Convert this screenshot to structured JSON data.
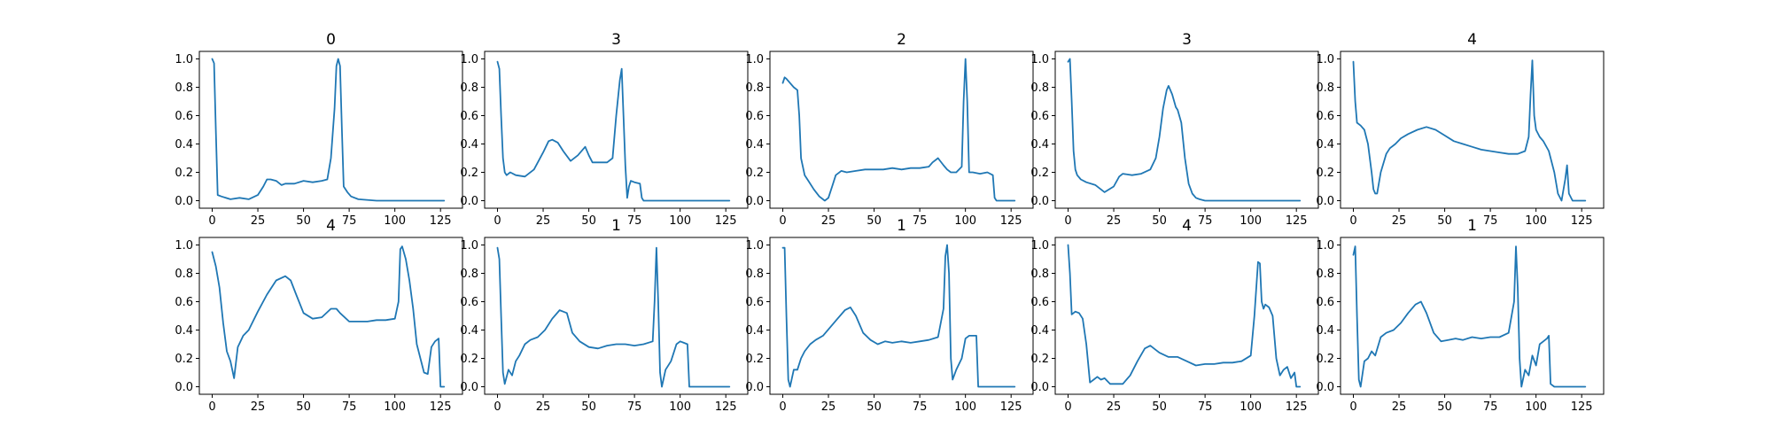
{
  "figure": {
    "line_color": "#1f77b4",
    "background": "#ffffff"
  },
  "chart_data": [
    {
      "type": "line",
      "title": "0",
      "xlim": [
        0,
        130
      ],
      "ylim": [
        0,
        1
      ],
      "x_ticks": [
        "0",
        "25",
        "50",
        "75",
        "100",
        "125"
      ],
      "y_ticks": [
        "0.0",
        "0.2",
        "0.4",
        "0.6",
        "0.8",
        "1.0"
      ],
      "x": [
        0,
        1,
        2,
        3,
        5,
        10,
        15,
        20,
        25,
        28,
        30,
        32,
        35,
        38,
        40,
        45,
        50,
        55,
        60,
        63,
        65,
        67,
        68,
        69,
        70,
        71,
        72,
        74,
        76,
        80,
        90,
        100,
        110,
        120,
        127
      ],
      "y": [
        1.0,
        0.97,
        0.5,
        0.04,
        0.03,
        0.01,
        0.02,
        0.01,
        0.04,
        0.1,
        0.15,
        0.15,
        0.14,
        0.11,
        0.12,
        0.12,
        0.14,
        0.13,
        0.14,
        0.15,
        0.3,
        0.65,
        0.95,
        1.0,
        0.95,
        0.5,
        0.1,
        0.06,
        0.03,
        0.01,
        0.0,
        0.0,
        0.0,
        0.0,
        0.0
      ]
    },
    {
      "type": "line",
      "title": "3",
      "xlim": [
        0,
        130
      ],
      "ylim": [
        0,
        1
      ],
      "x_ticks": [
        "0",
        "25",
        "50",
        "75",
        "100",
        "125"
      ],
      "y_ticks": [
        "0.0",
        "0.2",
        "0.4",
        "0.6",
        "0.8",
        "1.0"
      ],
      "x": [
        0,
        1,
        2,
        3,
        4,
        5,
        7,
        10,
        15,
        20,
        25,
        28,
        30,
        33,
        36,
        40,
        44,
        48,
        50,
        52,
        55,
        60,
        63,
        65,
        67,
        68,
        69,
        70,
        71,
        72,
        73,
        75,
        78,
        79,
        80,
        82,
        90,
        100,
        110,
        120,
        127
      ],
      "y": [
        0.98,
        0.93,
        0.6,
        0.3,
        0.2,
        0.18,
        0.2,
        0.18,
        0.17,
        0.22,
        0.34,
        0.42,
        0.43,
        0.41,
        0.35,
        0.28,
        0.32,
        0.38,
        0.32,
        0.27,
        0.27,
        0.27,
        0.3,
        0.6,
        0.85,
        0.93,
        0.6,
        0.25,
        0.02,
        0.1,
        0.14,
        0.13,
        0.12,
        0.02,
        0.0,
        0.0,
        0.0,
        0.0,
        0.0,
        0.0,
        0.0
      ]
    },
    {
      "type": "line",
      "title": "2",
      "xlim": [
        0,
        130
      ],
      "ylim": [
        0,
        1
      ],
      "x_ticks": [
        "0",
        "25",
        "50",
        "75",
        "100",
        "125"
      ],
      "y_ticks": [
        "0.0",
        "0.2",
        "0.4",
        "0.6",
        "0.8",
        "1.0"
      ],
      "x": [
        0,
        1,
        2,
        4,
        6,
        8,
        9,
        10,
        12,
        14,
        17,
        20,
        23,
        25,
        27,
        29,
        32,
        35,
        40,
        45,
        50,
        55,
        60,
        65,
        70,
        75,
        80,
        82,
        85,
        88,
        90,
        92,
        95,
        98,
        99,
        100,
        101,
        102,
        104,
        108,
        112,
        115,
        116,
        117,
        120,
        125,
        127
      ],
      "y": [
        0.83,
        0.87,
        0.86,
        0.83,
        0.8,
        0.78,
        0.6,
        0.3,
        0.18,
        0.14,
        0.08,
        0.03,
        0.0,
        0.02,
        0.1,
        0.18,
        0.21,
        0.2,
        0.21,
        0.22,
        0.22,
        0.22,
        0.23,
        0.22,
        0.23,
        0.23,
        0.24,
        0.27,
        0.3,
        0.25,
        0.22,
        0.2,
        0.2,
        0.24,
        0.7,
        1.0,
        0.7,
        0.2,
        0.2,
        0.19,
        0.2,
        0.18,
        0.02,
        0.0,
        0.0,
        0.0,
        0.0
      ]
    },
    {
      "type": "line",
      "title": "3",
      "xlim": [
        0,
        130
      ],
      "ylim": [
        0,
        1
      ],
      "x_ticks": [
        "0",
        "25",
        "50",
        "75",
        "100",
        "125"
      ],
      "y_ticks": [
        "0.0",
        "0.2",
        "0.4",
        "0.6",
        "0.8",
        "1.0"
      ],
      "x": [
        0,
        1,
        2,
        3,
        4,
        5,
        7,
        10,
        15,
        20,
        25,
        28,
        30,
        35,
        40,
        45,
        48,
        50,
        52,
        54,
        55,
        57,
        59,
        60,
        62,
        64,
        66,
        68,
        70,
        72,
        75,
        80,
        90,
        100,
        110,
        120,
        127
      ],
      "y": [
        0.98,
        1.0,
        0.7,
        0.35,
        0.22,
        0.18,
        0.15,
        0.13,
        0.11,
        0.06,
        0.1,
        0.17,
        0.19,
        0.18,
        0.19,
        0.22,
        0.3,
        0.45,
        0.65,
        0.78,
        0.81,
        0.75,
        0.66,
        0.64,
        0.55,
        0.3,
        0.12,
        0.05,
        0.02,
        0.01,
        0.0,
        0.0,
        0.0,
        0.0,
        0.0,
        0.0,
        0.0
      ]
    },
    {
      "type": "line",
      "title": "4",
      "xlim": [
        0,
        130
      ],
      "ylim": [
        0,
        1
      ],
      "x_ticks": [
        "0",
        "25",
        "50",
        "75",
        "100",
        "125"
      ],
      "y_ticks": [
        "0.0",
        "0.2",
        "0.4",
        "0.6",
        "0.8",
        "1.0"
      ],
      "x": [
        0,
        1,
        2,
        4,
        6,
        8,
        10,
        11,
        12,
        13,
        15,
        18,
        20,
        23,
        26,
        30,
        35,
        40,
        45,
        50,
        55,
        60,
        65,
        70,
        75,
        80,
        85,
        90,
        94,
        96,
        97,
        98,
        99,
        100,
        102,
        104,
        107,
        110,
        112,
        114,
        116,
        117,
        118,
        120,
        125,
        127
      ],
      "y": [
        0.98,
        0.7,
        0.55,
        0.53,
        0.5,
        0.4,
        0.2,
        0.08,
        0.05,
        0.05,
        0.2,
        0.33,
        0.37,
        0.4,
        0.44,
        0.47,
        0.5,
        0.52,
        0.5,
        0.46,
        0.42,
        0.4,
        0.38,
        0.36,
        0.35,
        0.34,
        0.33,
        0.33,
        0.35,
        0.45,
        0.75,
        0.99,
        0.6,
        0.5,
        0.45,
        0.42,
        0.35,
        0.2,
        0.05,
        0.0,
        0.15,
        0.25,
        0.05,
        0.0,
        0.0,
        0.0
      ]
    },
    {
      "type": "line",
      "title": "4",
      "xlim": [
        0,
        130
      ],
      "ylim": [
        0,
        1
      ],
      "x_ticks": [
        "0",
        "25",
        "50",
        "75",
        "100",
        "125"
      ],
      "y_ticks": [
        "0.0",
        "0.2",
        "0.4",
        "0.6",
        "0.8",
        "1.0"
      ],
      "x": [
        0,
        2,
        4,
        6,
        8,
        10,
        12,
        14,
        17,
        20,
        25,
        30,
        35,
        40,
        43,
        46,
        50,
        55,
        60,
        65,
        68,
        70,
        75,
        80,
        85,
        90,
        95,
        100,
        102,
        103,
        104,
        106,
        108,
        110,
        112,
        114,
        116,
        118,
        120,
        122,
        124,
        125,
        126,
        127
      ],
      "y": [
        0.95,
        0.85,
        0.7,
        0.45,
        0.25,
        0.18,
        0.06,
        0.28,
        0.36,
        0.4,
        0.53,
        0.65,
        0.75,
        0.78,
        0.75,
        0.65,
        0.52,
        0.48,
        0.49,
        0.55,
        0.55,
        0.52,
        0.46,
        0.46,
        0.46,
        0.47,
        0.47,
        0.48,
        0.6,
        0.97,
        0.99,
        0.9,
        0.75,
        0.55,
        0.3,
        0.2,
        0.1,
        0.09,
        0.28,
        0.32,
        0.34,
        0.0,
        0.0,
        0.0
      ]
    },
    {
      "type": "line",
      "title": "1",
      "xlim": [
        0,
        130
      ],
      "ylim": [
        0,
        1
      ],
      "x_ticks": [
        "0",
        "25",
        "50",
        "75",
        "100",
        "125"
      ],
      "y_ticks": [
        "0.0",
        "0.2",
        "0.4",
        "0.6",
        "0.8",
        "1.0"
      ],
      "x": [
        0,
        1,
        2,
        3,
        4,
        6,
        8,
        10,
        12,
        15,
        18,
        22,
        26,
        30,
        34,
        38,
        41,
        45,
        50,
        55,
        60,
        65,
        70,
        75,
        80,
        85,
        86,
        87,
        88,
        89,
        90,
        92,
        95,
        98,
        100,
        102,
        104,
        105,
        106,
        110,
        120,
        127
      ],
      "y": [
        0.98,
        0.9,
        0.5,
        0.1,
        0.02,
        0.12,
        0.08,
        0.18,
        0.22,
        0.3,
        0.33,
        0.35,
        0.4,
        0.48,
        0.54,
        0.52,
        0.38,
        0.32,
        0.28,
        0.27,
        0.29,
        0.3,
        0.3,
        0.29,
        0.3,
        0.32,
        0.6,
        0.98,
        0.6,
        0.1,
        0.0,
        0.12,
        0.18,
        0.3,
        0.32,
        0.31,
        0.3,
        0.0,
        0.0,
        0.0,
        0.0,
        0.0
      ]
    },
    {
      "type": "line",
      "title": "1",
      "xlim": [
        0,
        130
      ],
      "ylim": [
        0,
        1
      ],
      "x_ticks": [
        "0",
        "25",
        "50",
        "75",
        "100",
        "125"
      ],
      "y_ticks": [
        "0.0",
        "0.2",
        "0.4",
        "0.6",
        "0.8",
        "1.0"
      ],
      "x": [
        0,
        1,
        2,
        3,
        4,
        6,
        8,
        10,
        12,
        15,
        18,
        22,
        26,
        30,
        34,
        37,
        40,
        44,
        48,
        52,
        56,
        60,
        65,
        70,
        75,
        80,
        85,
        88,
        89,
        90,
        91,
        92,
        93,
        95,
        98,
        100,
        102,
        104,
        106,
        107,
        110,
        120,
        127
      ],
      "y": [
        0.98,
        0.98,
        0.5,
        0.05,
        0.0,
        0.12,
        0.12,
        0.2,
        0.25,
        0.3,
        0.33,
        0.36,
        0.42,
        0.48,
        0.54,
        0.56,
        0.5,
        0.38,
        0.33,
        0.3,
        0.32,
        0.31,
        0.32,
        0.31,
        0.32,
        0.33,
        0.35,
        0.55,
        0.92,
        1.0,
        0.8,
        0.2,
        0.05,
        0.12,
        0.2,
        0.34,
        0.36,
        0.36,
        0.36,
        0.0,
        0.0,
        0.0,
        0.0
      ]
    },
    {
      "type": "line",
      "title": "4",
      "xlim": [
        0,
        130
      ],
      "ylim": [
        0,
        1
      ],
      "x_ticks": [
        "0",
        "25",
        "50",
        "75",
        "100",
        "125"
      ],
      "y_ticks": [
        "0.0",
        "0.2",
        "0.4",
        "0.6",
        "0.8",
        "1.0"
      ],
      "x": [
        0,
        1,
        2,
        4,
        6,
        8,
        10,
        12,
        14,
        16,
        18,
        20,
        23,
        26,
        30,
        34,
        38,
        42,
        45,
        48,
        50,
        55,
        60,
        65,
        70,
        75,
        80,
        85,
        90,
        95,
        100,
        102,
        104,
        105,
        106,
        107,
        108,
        110,
        112,
        114,
        116,
        118,
        120,
        122,
        124,
        125,
        126,
        127
      ],
      "y": [
        1.0,
        0.8,
        0.51,
        0.53,
        0.52,
        0.48,
        0.3,
        0.03,
        0.05,
        0.07,
        0.05,
        0.06,
        0.02,
        0.02,
        0.02,
        0.08,
        0.18,
        0.27,
        0.29,
        0.26,
        0.24,
        0.21,
        0.21,
        0.18,
        0.15,
        0.16,
        0.16,
        0.17,
        0.17,
        0.18,
        0.22,
        0.5,
        0.88,
        0.87,
        0.6,
        0.55,
        0.58,
        0.56,
        0.5,
        0.2,
        0.08,
        0.12,
        0.14,
        0.06,
        0.1,
        0.0,
        0.0,
        0.0
      ]
    },
    {
      "type": "line",
      "title": "1",
      "xlim": [
        0,
        130
      ],
      "ylim": [
        0,
        1
      ],
      "x_ticks": [
        "0",
        "25",
        "50",
        "75",
        "100",
        "125"
      ],
      "y_ticks": [
        "0.0",
        "0.2",
        "0.4",
        "0.6",
        "0.8",
        "1.0"
      ],
      "x": [
        0,
        1,
        2,
        3,
        4,
        6,
        8,
        10,
        12,
        15,
        18,
        22,
        26,
        30,
        34,
        37,
        40,
        44,
        48,
        52,
        56,
        60,
        65,
        70,
        75,
        80,
        85,
        88,
        89,
        90,
        91,
        92,
        94,
        96,
        98,
        100,
        102,
        104,
        106,
        107,
        108,
        110,
        120,
        127
      ],
      "y": [
        0.93,
        0.99,
        0.5,
        0.05,
        0.0,
        0.18,
        0.2,
        0.25,
        0.22,
        0.35,
        0.38,
        0.4,
        0.45,
        0.52,
        0.58,
        0.6,
        0.52,
        0.38,
        0.32,
        0.33,
        0.34,
        0.33,
        0.35,
        0.34,
        0.35,
        0.35,
        0.38,
        0.6,
        0.99,
        0.7,
        0.2,
        0.0,
        0.12,
        0.08,
        0.22,
        0.15,
        0.3,
        0.32,
        0.34,
        0.36,
        0.02,
        0.0,
        0.0,
        0.0
      ]
    }
  ]
}
